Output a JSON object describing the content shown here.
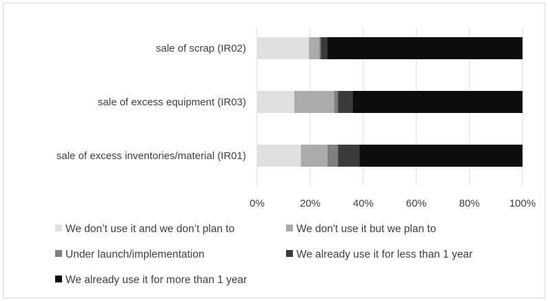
{
  "chart_data": {
    "type": "bar",
    "orientation": "horizontal",
    "stacked": "percent",
    "categories": [
      "sale of scrap (IR02)",
      "sale of excess equipment (IR03)",
      "sale of excess inventories/material (IR01)"
    ],
    "series": [
      {
        "name": "We don’t use it and we don’t plan to",
        "color": "#e0e0e0",
        "values": [
          19.5,
          14.0,
          16.5
        ]
      },
      {
        "name": "We don't use it but we plan to",
        "color": "#ababab",
        "values": [
          4.0,
          15.0,
          10.0
        ]
      },
      {
        "name": "Under launch/implementation",
        "color": "#7f7f7f",
        "values": [
          0.5,
          1.5,
          4.0
        ]
      },
      {
        "name": "We already use it for less than 1 year",
        "color": "#3a3a3a",
        "values": [
          2.5,
          5.5,
          8.0
        ]
      },
      {
        "name": "We already use it for more than 1 year",
        "color": "#0d0d0d",
        "values": [
          73.5,
          64.0,
          61.5
        ]
      }
    ],
    "xlim": [
      0,
      100
    ],
    "xticks": [
      "0%",
      "20%",
      "40%",
      "60%",
      "80%",
      "100%"
    ],
    "grid": true,
    "legend_position": "bottom"
  }
}
